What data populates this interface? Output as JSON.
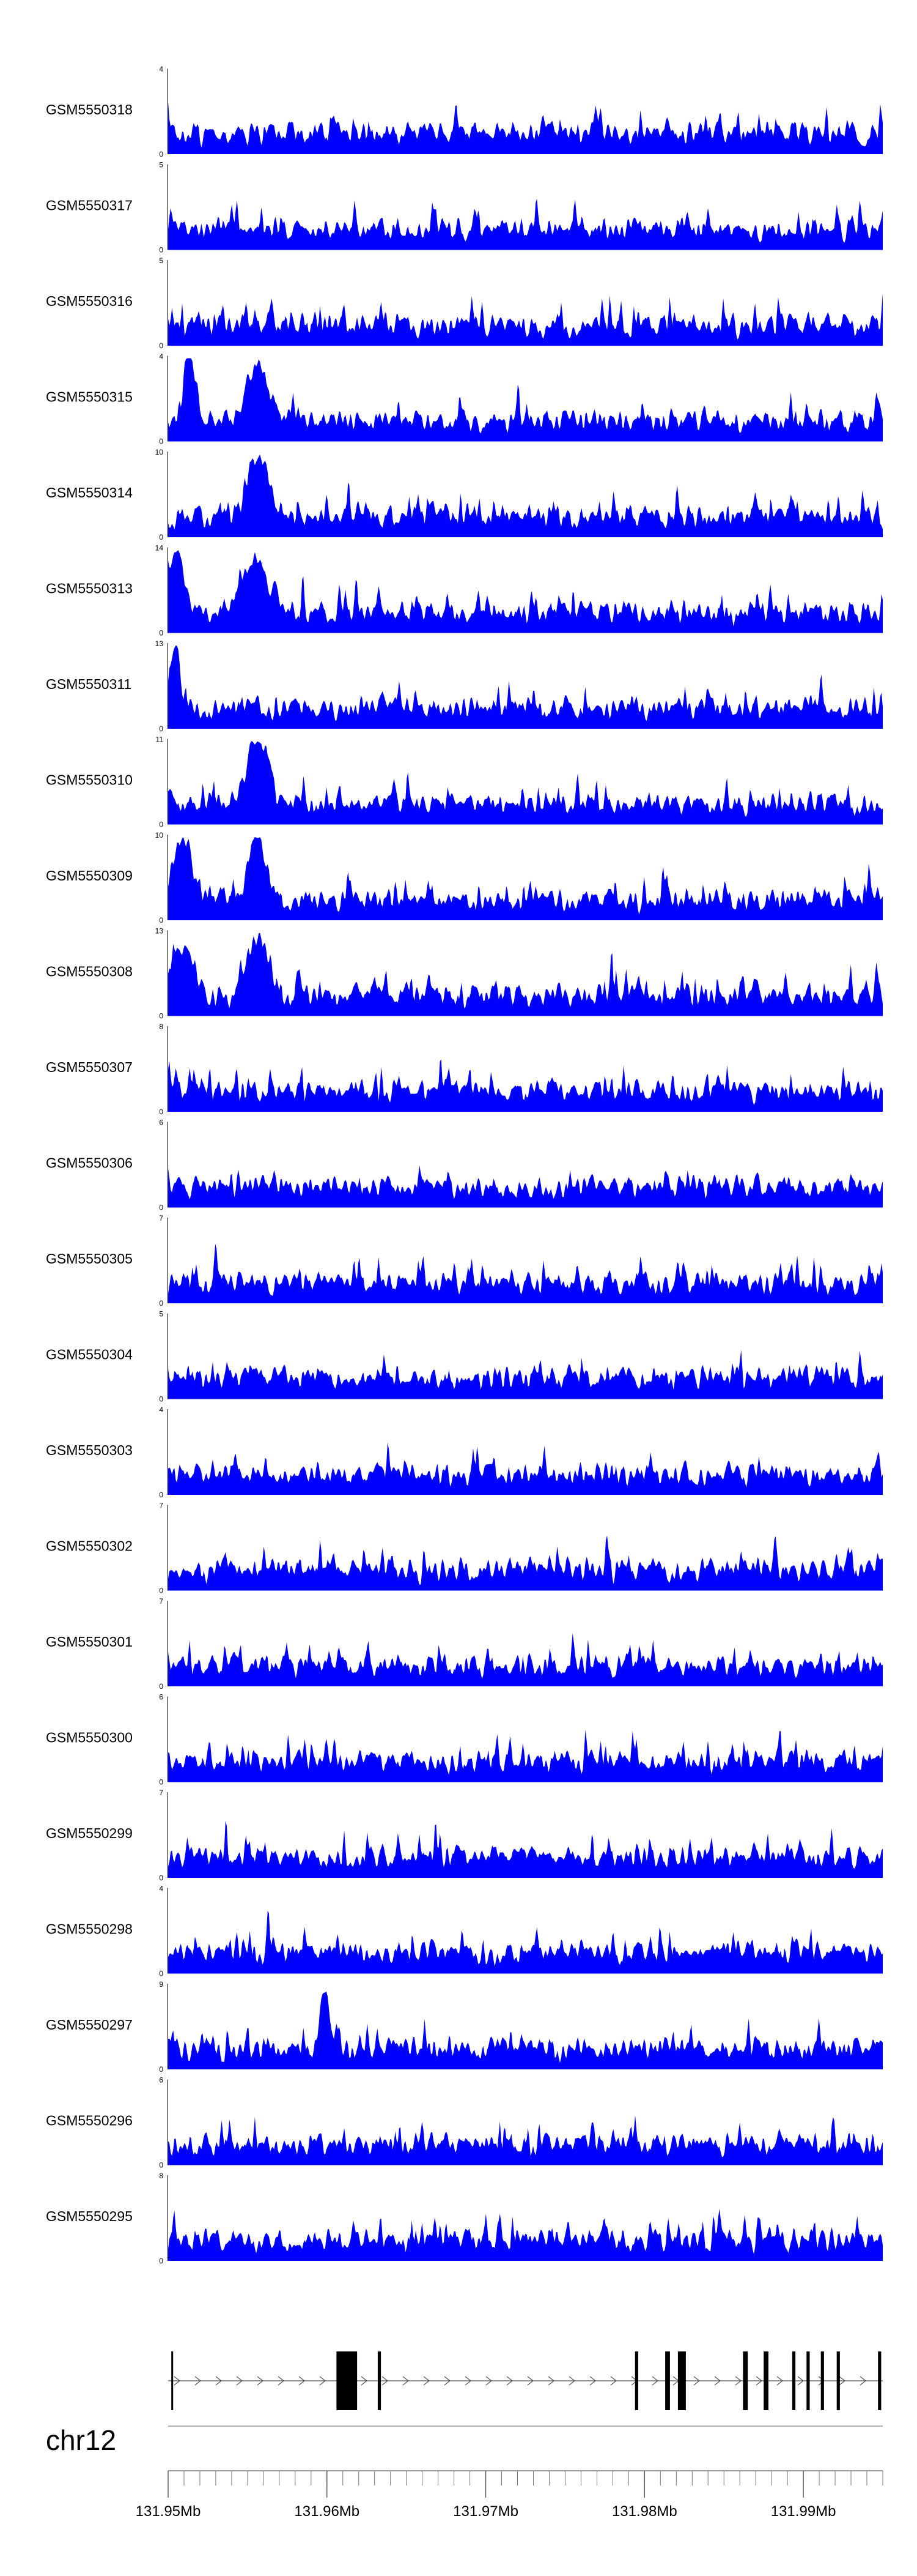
{
  "chart_data": {
    "type": "area",
    "series_color": "#0000ff",
    "x_range": [
      131.95,
      131.995
    ],
    "genome_axis": {
      "chromosome": "chr12",
      "ticks": [
        131.95,
        131.96,
        131.97,
        131.98,
        131.99
      ],
      "tick_labels": [
        "131.95Mb",
        "131.96Mb",
        "131.97Mb",
        "131.98Mb",
        "131.99Mb"
      ]
    },
    "tracks": [
      {
        "name": "GSM5550318",
        "ymax": 4,
        "yticks": [
          "0",
          "4"
        ],
        "seed": 318,
        "bumps": []
      },
      {
        "name": "GSM5550317",
        "ymax": 5,
        "yticks": [
          "0",
          "5"
        ],
        "seed": 317,
        "bumps": []
      },
      {
        "name": "GSM5550316",
        "ymax": 5,
        "yticks": [
          "0",
          "5"
        ],
        "seed": 316,
        "bumps": []
      },
      {
        "name": "GSM5550315",
        "ymax": 4,
        "yticks": [
          "0",
          "4"
        ],
        "seed": 315,
        "bumps": [
          [
            0.03,
            0.012,
            0.9
          ],
          [
            0.125,
            0.02,
            0.8
          ]
        ]
      },
      {
        "name": "GSM5550314",
        "ymax": 10,
        "yticks": [
          "0",
          "10"
        ],
        "seed": 314,
        "bumps": [
          [
            0.125,
            0.02,
            0.9
          ]
        ]
      },
      {
        "name": "GSM5550313",
        "ymax": 14,
        "yticks": [
          "0",
          "14"
        ],
        "seed": 313,
        "bumps": [
          [
            0.01,
            0.015,
            0.95
          ],
          [
            0.125,
            0.025,
            0.75
          ]
        ]
      },
      {
        "name": "GSM5550311",
        "ymax": 13,
        "yticks": [
          "0",
          "13"
        ],
        "seed": 311,
        "bumps": [
          [
            0.01,
            0.01,
            0.9
          ]
        ]
      },
      {
        "name": "GSM5550310",
        "ymax": 11,
        "yticks": [
          "0",
          "11"
        ],
        "seed": 310,
        "bumps": [
          [
            0.125,
            0.02,
            0.9
          ]
        ]
      },
      {
        "name": "GSM5550309",
        "ymax": 10,
        "yticks": [
          "0",
          "10"
        ],
        "seed": 309,
        "bumps": [
          [
            0.02,
            0.02,
            0.9
          ],
          [
            0.125,
            0.018,
            0.9
          ]
        ]
      },
      {
        "name": "GSM5550308",
        "ymax": 13,
        "yticks": [
          "0",
          "13"
        ],
        "seed": 308,
        "bumps": [
          [
            0.02,
            0.02,
            0.7
          ],
          [
            0.125,
            0.02,
            0.85
          ]
        ]
      },
      {
        "name": "GSM5550307",
        "ymax": 8,
        "yticks": [
          "0",
          "8"
        ],
        "seed": 307,
        "bumps": []
      },
      {
        "name": "GSM5550306",
        "ymax": 6,
        "yticks": [
          "0",
          "6"
        ],
        "seed": 306,
        "bumps": []
      },
      {
        "name": "GSM5550305",
        "ymax": 7,
        "yticks": [
          "0",
          "7"
        ],
        "seed": 305,
        "bumps": []
      },
      {
        "name": "GSM5550304",
        "ymax": 5,
        "yticks": [
          "0",
          "5"
        ],
        "seed": 304,
        "bumps": []
      },
      {
        "name": "GSM5550303",
        "ymax": 4,
        "yticks": [
          "0",
          "4"
        ],
        "seed": 303,
        "bumps": []
      },
      {
        "name": "GSM5550302",
        "ymax": 7,
        "yticks": [
          "0",
          "7"
        ],
        "seed": 302,
        "bumps": []
      },
      {
        "name": "GSM5550301",
        "ymax": 7,
        "yticks": [
          "0",
          "7"
        ],
        "seed": 301,
        "bumps": []
      },
      {
        "name": "GSM5550300",
        "ymax": 6,
        "yticks": [
          "0",
          "6"
        ],
        "seed": 300,
        "bumps": []
      },
      {
        "name": "GSM5550299",
        "ymax": 7,
        "yticks": [
          "0",
          "7"
        ],
        "seed": 299,
        "bumps": []
      },
      {
        "name": "GSM5550298",
        "ymax": 4,
        "yticks": [
          "0",
          "4"
        ],
        "seed": 298,
        "bumps": []
      },
      {
        "name": "GSM5550297",
        "ymax": 9,
        "yticks": [
          "0",
          "9"
        ],
        "seed": 297,
        "bumps": [
          [
            0.22,
            0.01,
            0.8
          ]
        ]
      },
      {
        "name": "GSM5550296",
        "ymax": 6,
        "yticks": [
          "0",
          "6"
        ],
        "seed": 296,
        "bumps": []
      },
      {
        "name": "GSM5550295",
        "ymax": 8,
        "yticks": [
          "0",
          "8"
        ],
        "seed": 295,
        "bumps": []
      }
    ],
    "gene_model": {
      "intron_span": [
        131.95,
        131.995
      ],
      "strand": "+",
      "exons": [
        {
          "start": 131.9502,
          "end": 131.9503,
          "tall": false
        },
        {
          "start": 131.9606,
          "end": 131.9619,
          "tall": true
        },
        {
          "start": 131.9632,
          "end": 131.9634,
          "tall": false
        },
        {
          "start": 131.9794,
          "end": 131.9796,
          "tall": false
        },
        {
          "start": 131.9813,
          "end": 131.9816,
          "tall": false
        },
        {
          "start": 131.9821,
          "end": 131.9826,
          "tall": false
        },
        {
          "start": 131.9862,
          "end": 131.9865,
          "tall": false
        },
        {
          "start": 131.9875,
          "end": 131.9878,
          "tall": false
        },
        {
          "start": 131.9893,
          "end": 131.9895,
          "tall": false
        },
        {
          "start": 131.9902,
          "end": 131.9904,
          "tall": false
        },
        {
          "start": 131.9911,
          "end": 131.9913,
          "tall": false
        },
        {
          "start": 131.9921,
          "end": 131.9923,
          "tall": false
        },
        {
          "start": 131.9947,
          "end": 131.9949,
          "tall": false
        }
      ]
    }
  }
}
